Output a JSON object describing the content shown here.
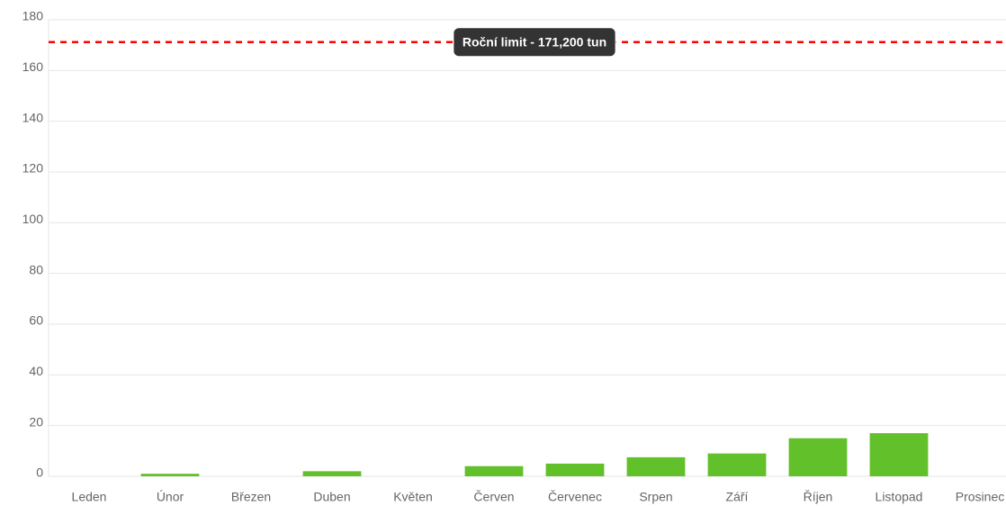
{
  "chart_data": {
    "type": "bar",
    "categories": [
      "Leden",
      "Únor",
      "Březen",
      "Duben",
      "Květen",
      "Červen",
      "Červenec",
      "Srpen",
      "Září",
      "Říjen",
      "Listopad",
      "Prosinec"
    ],
    "values": [
      0,
      1,
      0,
      2,
      0,
      4,
      5,
      7.5,
      9,
      15,
      17,
      0
    ],
    "color": "#62c02a",
    "ylim": [
      0,
      180
    ],
    "yticks": [
      0,
      20,
      40,
      60,
      80,
      100,
      120,
      140,
      160,
      180
    ],
    "grid": true,
    "annotation": {
      "value": 171.2,
      "label": "Roční limit - 171,200 tun",
      "color": "#ff0000"
    }
  }
}
